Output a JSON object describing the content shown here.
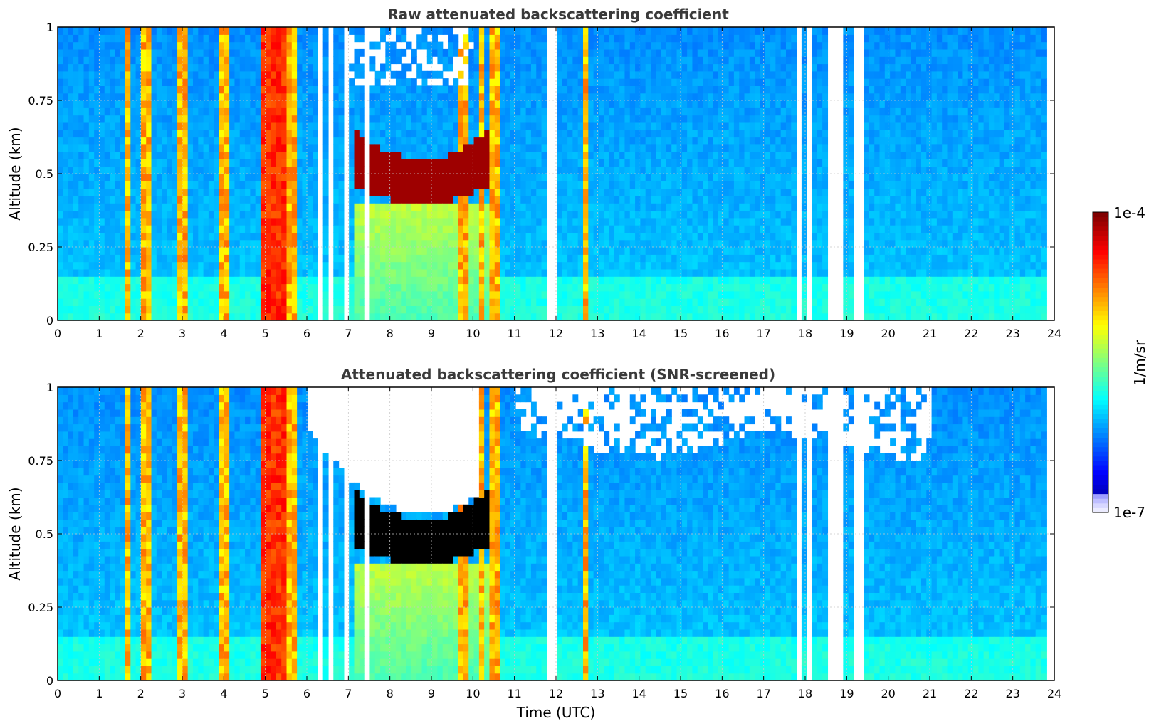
{
  "chart_data": [
    {
      "type": "heatmap",
      "title": "Raw attenuated backscattering coefficient",
      "xlabel": "",
      "ylabel": "Altitude (km)",
      "xlim": [
        0,
        24
      ],
      "ylim": [
        0,
        1
      ],
      "x_ticks": [
        "0",
        "1",
        "2",
        "3",
        "4",
        "5",
        "6",
        "7",
        "8",
        "9",
        "10",
        "11",
        "12",
        "13",
        "14",
        "15",
        "16",
        "17",
        "18",
        "19",
        "20",
        "21",
        "22",
        "23",
        "24"
      ],
      "y_ticks": [
        "0",
        "0.25",
        "0.5",
        "0.75",
        "1"
      ],
      "grid": true,
      "data_end_time": 23.8,
      "background_level": 0.27,
      "cloud_layer": {
        "start": 7.2,
        "end": 10.4,
        "base_altitude": 0.4,
        "top_altitude": 0.55,
        "level": 0.97
      },
      "vertical_streaks": [
        1.7,
        2.1,
        3.0,
        4.0,
        5.0,
        5.3,
        5.6,
        9.8,
        10.2,
        10.5,
        12.7
      ],
      "data_gaps": [
        6.35,
        6.6,
        7.0,
        7.5,
        11.9,
        17.8,
        18.1,
        18.6,
        18.8,
        19.3
      ]
    },
    {
      "type": "heatmap",
      "title": "Attenuated backscattering coefficient (SNR-screened)",
      "xlabel": "Time (UTC)",
      "ylabel": "Altitude (km)",
      "xlim": [
        0,
        24
      ],
      "ylim": [
        0,
        1
      ],
      "x_ticks": [
        "0",
        "1",
        "2",
        "3",
        "4",
        "5",
        "6",
        "7",
        "8",
        "9",
        "10",
        "11",
        "12",
        "13",
        "14",
        "15",
        "16",
        "17",
        "18",
        "19",
        "20",
        "21",
        "22",
        "23",
        "24"
      ],
      "y_ticks": [
        "0",
        "0.25",
        "0.5",
        "0.75",
        "1"
      ],
      "grid": true,
      "data_end_time": 23.8,
      "screened": true,
      "cloud_layer": {
        "start": 7.2,
        "end": 10.4,
        "base_altitude": 0.4,
        "top_altitude": 0.55,
        "level": 1.0
      }
    }
  ],
  "colorbar": {
    "label": "1/m/sr",
    "max_label": "1e-4",
    "min_label": "1e-7",
    "scale": "log",
    "colormap": "jet"
  }
}
